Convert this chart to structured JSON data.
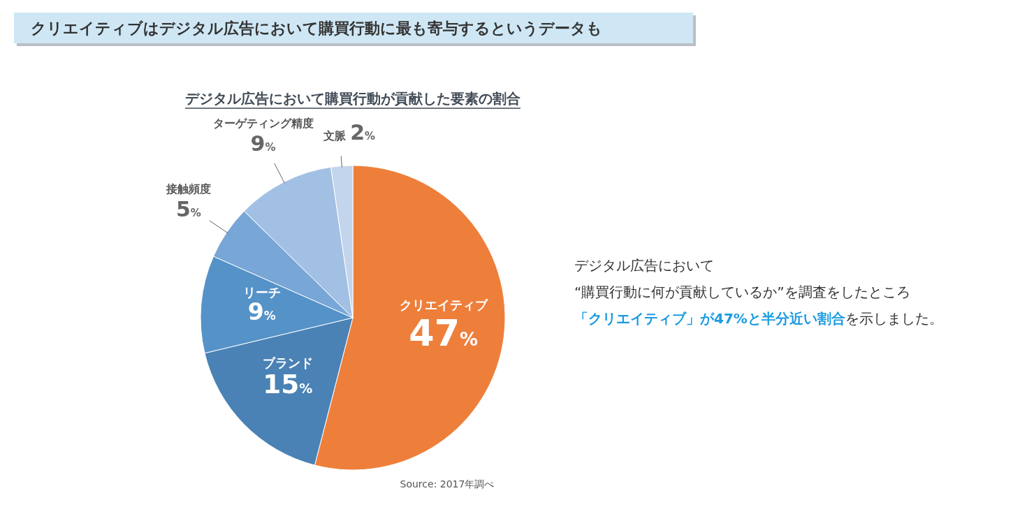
{
  "chart_data": {
    "type": "pie",
    "title": "クリエイティブはデジタル広告において購買行動に最も寄与するというデータも",
    "subtitle": "デジタル広告において購買行動が貢献した要素の割合",
    "categories": [
      "クリエイティブ",
      "ブランド",
      "リーチ",
      "接触頻度",
      "ターゲティング精度",
      "文脈"
    ],
    "values": [
      47,
      15,
      9,
      5,
      9,
      2
    ],
    "value_labels": [
      "47%",
      "15%",
      "9%",
      "5%",
      "9%",
      "2%"
    ],
    "colors": [
      "#ee7f3b",
      "#4a82b5",
      "#5592c8",
      "#78a6d6",
      "#a2c0e3",
      "#c3d5ec"
    ],
    "annotations": [
      "デジタル広告において",
      "“購買行動に何が貢献しているか”を調査をしたところ",
      "**「クリエイティブ」が47%と半分近い割合**を示しました。",
      "Source: 2017年調べ"
    ]
  }
}
